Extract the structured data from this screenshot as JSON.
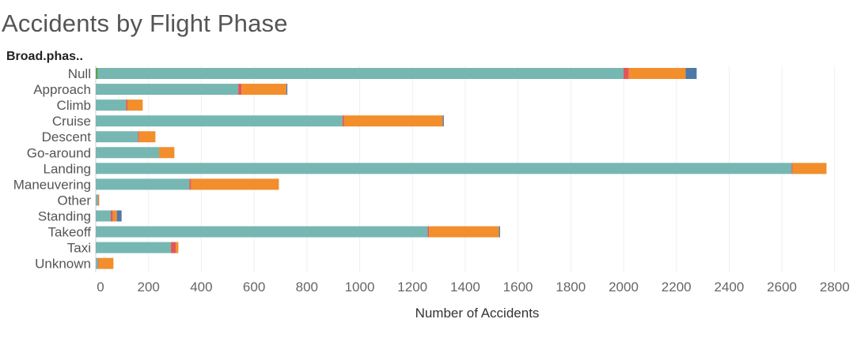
{
  "chart_data": {
    "type": "bar",
    "orientation": "horizontal",
    "stacked": true,
    "title": "Accidents by Flight Phase",
    "row_header": "Broad.phas..",
    "xlabel": "Number of Accidents",
    "xlim": [
      0,
      2800
    ],
    "xticks": [
      0,
      200,
      400,
      600,
      800,
      1000,
      1200,
      1400,
      1600,
      1800,
      2000,
      2200,
      2400,
      2600,
      2800
    ],
    "grid": true,
    "categories": [
      "Null",
      "Approach",
      "Climb",
      "Cruise",
      "Descent",
      "Go-around",
      "Landing",
      "Maneuvering",
      "Other",
      "Standing",
      "Takeoff",
      "Taxi",
      "Unknown"
    ],
    "series": [
      {
        "color": "#59a14f",
        "values": [
          8,
          0,
          0,
          0,
          0,
          0,
          0,
          0,
          0,
          0,
          0,
          0,
          0
        ]
      },
      {
        "color": "#76b7b2",
        "values": [
          1992,
          540,
          115,
          935,
          160,
          240,
          2637,
          355,
          8,
          57,
          1258,
          285,
          8
        ]
      },
      {
        "color": "#e15759",
        "values": [
          20,
          12,
          5,
          5,
          4,
          0,
          4,
          6,
          2,
          8,
          5,
          18,
          2
        ]
      },
      {
        "color": "#f28e2b",
        "values": [
          215,
          170,
          58,
          375,
          62,
          58,
          128,
          333,
          3,
          15,
          265,
          10,
          57
        ]
      },
      {
        "color": "#4e79a7",
        "values": [
          42,
          4,
          0,
          4,
          0,
          0,
          0,
          0,
          0,
          18,
          4,
          0,
          0
        ]
      }
    ]
  }
}
